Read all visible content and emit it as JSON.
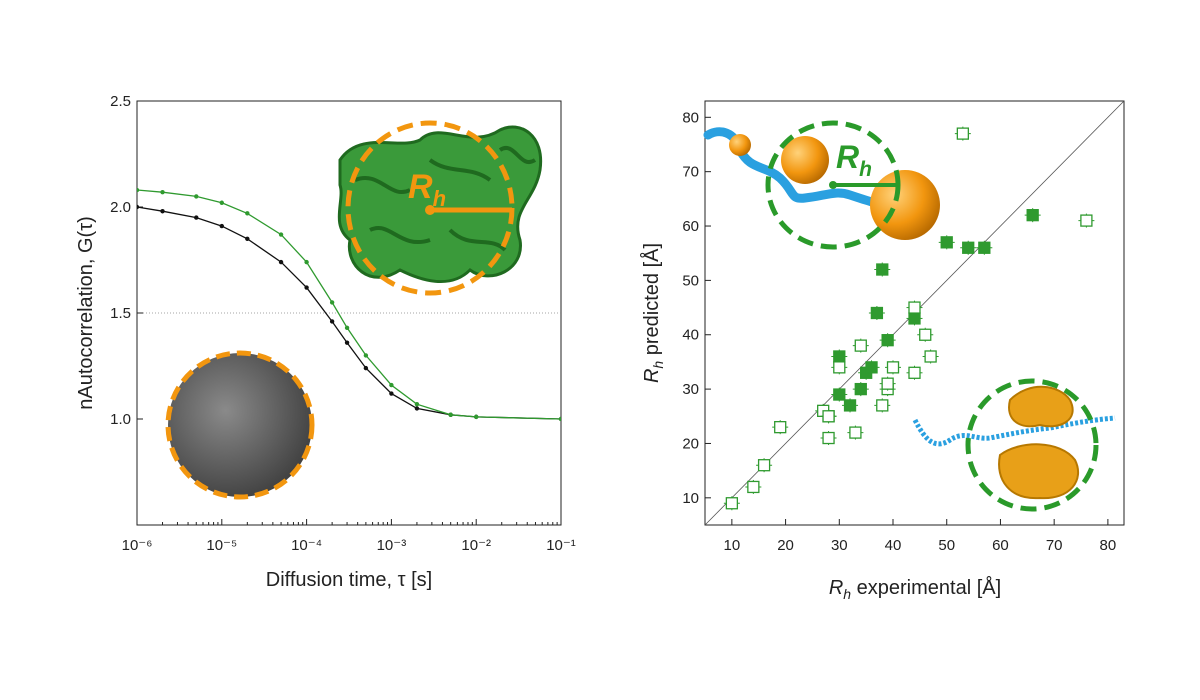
{
  "colors": {
    "green": "#2f9a2f",
    "dark_green": "#2a7a2a",
    "black": "#111111",
    "orange": "#f2960f",
    "blue": "#2aa0e0",
    "gray_sphere": "#555555"
  },
  "icons": [
    "disordered-protein-green-surface-icon",
    "globular-protein-gray-sphere-icon",
    "polymer-chain-blue-orange-icon",
    "multidomain-protein-orange-icon"
  ],
  "chart_data": [
    {
      "type": "scatter",
      "x_scale": "log",
      "xlim_exponents": [
        -6,
        -1
      ],
      "x_tick_labels": [
        "10⁻⁶",
        "10⁻⁵",
        "10⁻⁴",
        "10⁻³",
        "10⁻²",
        "10⁻¹"
      ],
      "ylim": [
        0.5,
        2.5
      ],
      "y_tick_labels": [
        "1.0",
        "1.5",
        "2.0",
        "2.5"
      ],
      "xlabel": "Diffusion time, τ   [s]",
      "ylabel": "nAutocorrelation, G(τ)",
      "reference_line_y": 1.5,
      "annotation": "Rh",
      "series": [
        {
          "color": "black",
          "style": "points+fit",
          "x": [
            1e-06,
            2e-06,
            5e-06,
            1e-05,
            2e-05,
            5e-05,
            0.0001,
            0.0002,
            0.0003,
            0.0005,
            0.001,
            0.002,
            0.005,
            0.01,
            0.1
          ],
          "y": [
            2.0,
            1.98,
            1.95,
            1.91,
            1.85,
            1.74,
            1.62,
            1.46,
            1.36,
            1.24,
            1.12,
            1.05,
            1.02,
            1.01,
            1.0
          ]
        },
        {
          "color": "green",
          "style": "points+fit",
          "x": [
            1e-06,
            2e-06,
            5e-06,
            1e-05,
            2e-05,
            5e-05,
            0.0001,
            0.0002,
            0.0003,
            0.0005,
            0.001,
            0.002,
            0.005,
            0.01,
            0.1
          ],
          "y": [
            2.08,
            2.07,
            2.05,
            2.02,
            1.97,
            1.87,
            1.74,
            1.55,
            1.43,
            1.3,
            1.16,
            1.07,
            1.02,
            1.01,
            1.0
          ]
        }
      ]
    },
    {
      "type": "scatter",
      "xlim": [
        5,
        83
      ],
      "ylim": [
        5,
        83
      ],
      "x_ticks": [
        10,
        20,
        30,
        40,
        50,
        60,
        70,
        80
      ],
      "y_ticks": [
        10,
        20,
        30,
        40,
        50,
        60,
        70,
        80
      ],
      "xlabel_main": "experimental   [Å]",
      "ylabel_main": "predicted   [Å]",
      "axis_symbol": "R",
      "axis_subscript": "h",
      "diagonal": true,
      "annotation": "Rh",
      "series": [
        {
          "marker": "filled-square",
          "color": "green",
          "points": [
            [
              28,
              25
            ],
            [
              30,
              29
            ],
            [
              30,
              36
            ],
            [
              32,
              27
            ],
            [
              34,
              30
            ],
            [
              35,
              33
            ],
            [
              36,
              34
            ],
            [
              37,
              44
            ],
            [
              38,
              52
            ],
            [
              39,
              39
            ],
            [
              44,
              43
            ],
            [
              50,
              57
            ],
            [
              54,
              56
            ],
            [
              57,
              56
            ],
            [
              66,
              62
            ]
          ]
        },
        {
          "marker": "open-square",
          "color": "green",
          "points": [
            [
              10,
              9
            ],
            [
              14,
              12
            ],
            [
              16,
              16
            ],
            [
              19,
              23
            ],
            [
              27,
              26
            ],
            [
              28,
              25
            ],
            [
              28,
              21
            ],
            [
              30,
              34
            ],
            [
              33,
              22
            ],
            [
              34,
              38
            ],
            [
              38,
              27
            ],
            [
              39,
              30
            ],
            [
              39,
              31
            ],
            [
              40,
              34
            ],
            [
              44,
              33
            ],
            [
              44,
              45
            ],
            [
              46,
              40
            ],
            [
              47,
              36
            ],
            [
              53,
              77
            ],
            [
              76,
              61
            ]
          ]
        }
      ]
    }
  ]
}
